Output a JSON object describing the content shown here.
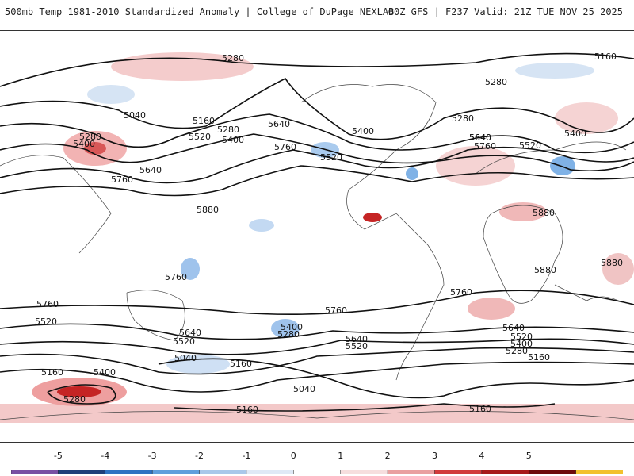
{
  "header": {
    "title": "500mb Temp 1981-2010 Standardized Anomaly | College of DuPage NEXLAB",
    "run_info": "00Z GFS | F237 Valid: 21Z TUE NOV 25 2025"
  },
  "colorbar": {
    "ticks": [
      "-5",
      "-4",
      "-3",
      "-2",
      "-1",
      "0",
      "1",
      "2",
      "3",
      "4",
      "5"
    ],
    "colors": [
      "#7a4fa3",
      "#1f3f7a",
      "#2f72c1",
      "#5f9fdc",
      "#a9c8ea",
      "#dfe9f6",
      "#ffffff",
      "#f6dede",
      "#e9a0a0",
      "#d23b3b",
      "#a81a1a",
      "#6e0b0b",
      "#f2c12e"
    ]
  },
  "contour_labels": [
    {
      "value": "5280"
    },
    {
      "value": "5160"
    },
    {
      "value": "5280"
    },
    {
      "value": "5040"
    },
    {
      "value": "5160"
    },
    {
      "value": "5280"
    },
    {
      "value": "5400"
    },
    {
      "value": "5520"
    },
    {
      "value": "5280"
    },
    {
      "value": "5400"
    },
    {
      "value": "5640"
    },
    {
      "value": "5760"
    },
    {
      "value": "5640"
    },
    {
      "value": "5760"
    },
    {
      "value": "5880"
    },
    {
      "value": "5640"
    },
    {
      "value": "5400"
    },
    {
      "value": "5520"
    },
    {
      "value": "5280"
    },
    {
      "value": "5640"
    },
    {
      "value": "5760"
    },
    {
      "value": "5520"
    },
    {
      "value": "5400"
    },
    {
      "value": "5880"
    },
    {
      "value": "5880"
    },
    {
      "value": "5880"
    },
    {
      "value": "5760"
    },
    {
      "value": "5760"
    },
    {
      "value": "5760"
    },
    {
      "value": "5760"
    },
    {
      "value": "5520"
    },
    {
      "value": "5640"
    },
    {
      "value": "5520"
    },
    {
      "value": "5400"
    },
    {
      "value": "5280"
    },
    {
      "value": "5640"
    },
    {
      "value": "5520"
    },
    {
      "value": "5640"
    },
    {
      "value": "5520"
    },
    {
      "value": "5400"
    },
    {
      "value": "5280"
    },
    {
      "value": "5160"
    },
    {
      "value": "5040"
    },
    {
      "value": "5160"
    },
    {
      "value": "5400"
    },
    {
      "value": "5160"
    },
    {
      "value": "5280"
    },
    {
      "value": "5040"
    },
    {
      "value": "5160"
    },
    {
      "value": "5160"
    }
  ]
}
